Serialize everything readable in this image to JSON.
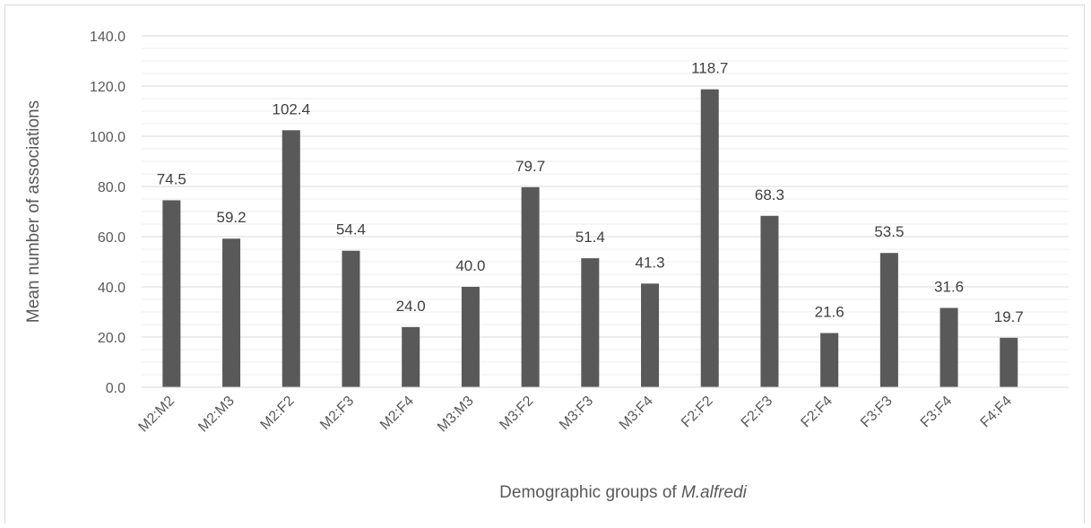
{
  "chart_data": {
    "type": "bar",
    "title": "",
    "xlabel": "Demographic groups of ",
    "xlabel_italic": "M.alfredi",
    "ylabel": "Mean number of associations",
    "ylim": [
      0,
      140
    ],
    "ytick_step": 20,
    "yticks": [
      "0.0",
      "20.0",
      "40.0",
      "60.0",
      "80.0",
      "100.0",
      "120.0",
      "140.0"
    ],
    "grid": true,
    "legend": "none",
    "bar_color": "#595959",
    "categories": [
      "M2:M2",
      "M2:M3",
      "M2:F2",
      "M2:F3",
      "M2:F4",
      "M3:M3",
      "M3:F2",
      "M3:F3",
      "M3:F4",
      "F2:F2",
      "F2:F3",
      "F2:F4",
      "F3:F3",
      "F3:F4",
      "F4:F4"
    ],
    "values": [
      74.5,
      59.2,
      102.4,
      54.4,
      24.0,
      40.0,
      79.7,
      51.4,
      41.3,
      118.7,
      68.3,
      21.6,
      53.5,
      31.6,
      19.7
    ],
    "value_labels": [
      "74.5",
      "59.2",
      "102.4",
      "54.4",
      "24.0",
      "40.0",
      "79.7",
      "51.4",
      "41.3",
      "118.7",
      "68.3",
      "21.6",
      "53.5",
      "31.6",
      "19.7"
    ]
  }
}
